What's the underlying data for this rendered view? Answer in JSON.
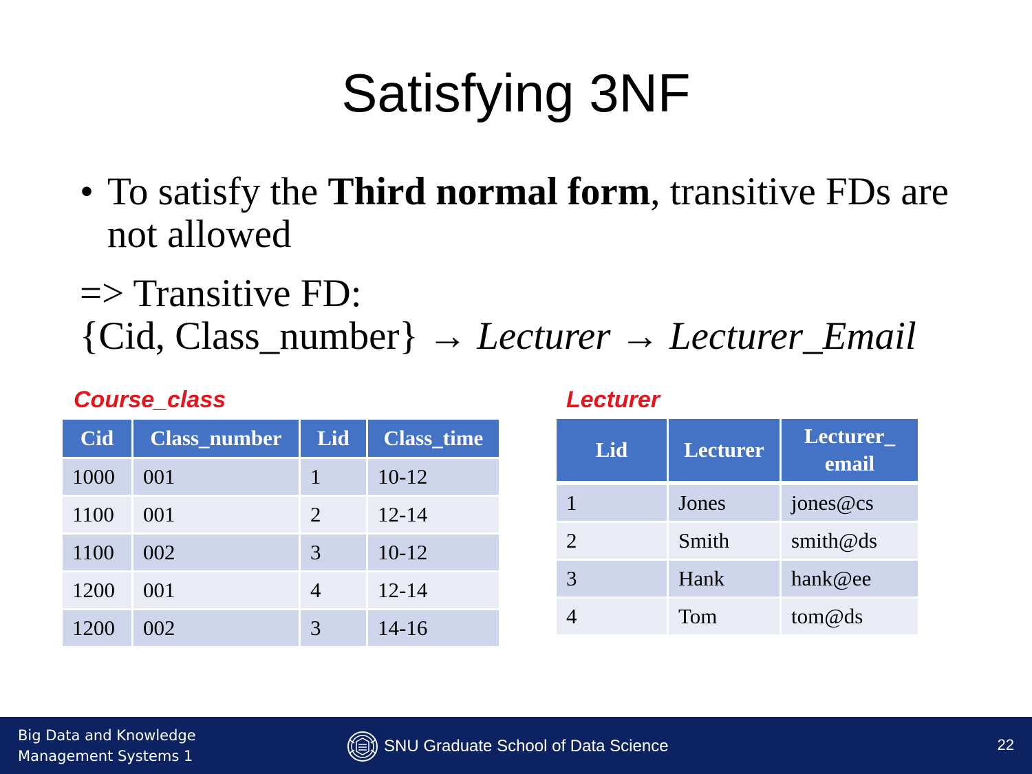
{
  "slide": {
    "title": "Satisfying 3NF",
    "bullet": {
      "symbol": "•",
      "text_before": "To satisfy the ",
      "text_bold": "Third normal form",
      "text_after": ", transitive FDs are not allowed"
    },
    "arrow_line": "=> Transitive FD:",
    "fd": {
      "lhs": "{Cid, Class_number} ",
      "arrow1": "→ ",
      "mid": "Lecturer",
      "arrow2": " → ",
      "rhs": "Lecturer_Email"
    }
  },
  "course_class": {
    "label": "Course_class",
    "headers": [
      "Cid",
      "Class_number",
      "Lid",
      "Class_time"
    ],
    "rows": [
      [
        "1000",
        "001",
        "1",
        "10-12"
      ],
      [
        "1100",
        "001",
        "2",
        "12-14"
      ],
      [
        "1100",
        "002",
        "3",
        "10-12"
      ],
      [
        "1200",
        "001",
        "4",
        "12-14"
      ],
      [
        "1200",
        "002",
        "3",
        "14-16"
      ]
    ]
  },
  "lecturer": {
    "label": "Lecturer",
    "headers": [
      "Lid",
      "Lecturer",
      "Lecturer_ email"
    ],
    "rows": [
      [
        "1",
        "Jones",
        "jones@cs"
      ],
      [
        "2",
        "Smith",
        "smith@ds"
      ],
      [
        "3",
        "Hank",
        "hank@ee"
      ],
      [
        "4",
        "Tom",
        "tom@ds"
      ]
    ]
  },
  "footer": {
    "course_line1": "Big Data and Knowledge",
    "course_line2": "Management Systems 1",
    "school": "SNU Graduate School of Data Science",
    "emblem_icon": "snu-emblem-icon",
    "page_number": "22"
  },
  "colors": {
    "header_blue": "#4472c4",
    "row_dark": "#cfd5ea",
    "row_light": "#e9ebf5",
    "label_red": "#e8141b",
    "footer_navy": "#0d2260"
  }
}
